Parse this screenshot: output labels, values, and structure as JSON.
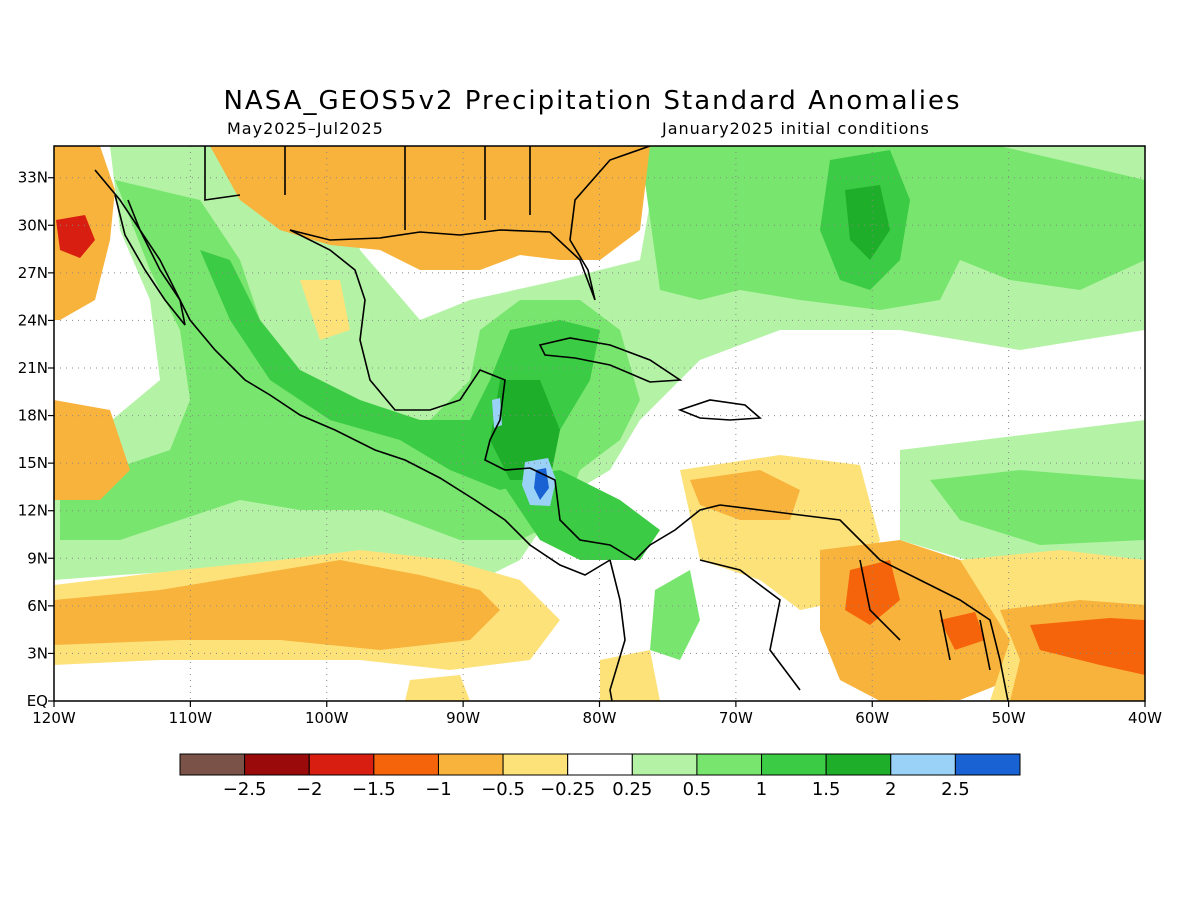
{
  "header": {
    "title": "NASA_GEOS5v2 Precipitation Standard Anomalies",
    "period": "May2025–Jul2025",
    "init": "January2025 initial conditions"
  },
  "axes": {
    "lon_labels": [
      "120W",
      "110W",
      "100W",
      "90W",
      "80W",
      "70W",
      "60W",
      "50W",
      "40W"
    ],
    "lat_labels": [
      "33N",
      "30N",
      "27N",
      "24N",
      "21N",
      "18N",
      "15N",
      "12N",
      "9N",
      "6N",
      "3N",
      "EQ"
    ]
  },
  "colorbar": {
    "colors": [
      "#7a5248",
      "#9a0a0a",
      "#d81e10",
      "#f5640a",
      "#f8b33c",
      "#fde27a",
      "#ffffff",
      "#b4f3a6",
      "#78e66e",
      "#3ccb44",
      "#1fae2a",
      "#9ad2f7",
      "#1862d4"
    ],
    "labels": [
      "−2.5",
      "−2",
      "−1.5",
      "−1",
      "−0.5",
      "−0.25",
      "0.25",
      "0.5",
      "1",
      "1.5",
      "2",
      "2.5"
    ]
  },
  "chart_data": {
    "type": "map",
    "title": "NASA_GEOS5v2 Precipitation Standard Anomalies",
    "subtitle_left": "May2025–Jul2025",
    "subtitle_right": "January2025 initial conditions",
    "lon_range": [
      -120,
      -40
    ],
    "lat_range": [
      0,
      35
    ],
    "grid": "dotted",
    "levels": [
      -2.5,
      -2,
      -1.5,
      -1,
      -0.5,
      -0.25,
      0.25,
      0.5,
      1,
      1.5,
      2,
      2.5
    ]
  }
}
